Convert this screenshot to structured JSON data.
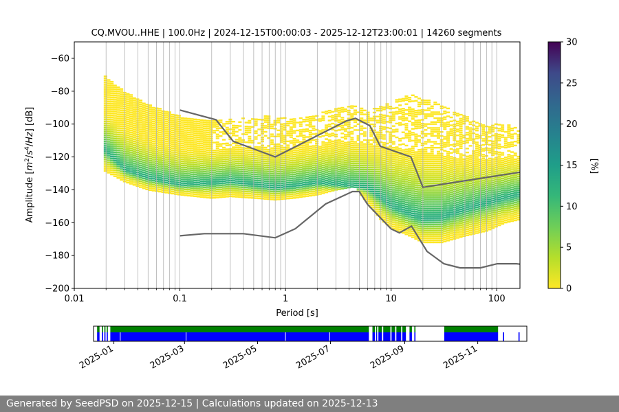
{
  "chart_data": [
    {
      "type": "heatmap",
      "title": "CQ.MVOU..HHE | 100.0Hz | 2024-12-15T00:00:03 - 2025-12-12T23:00:01 | 14260 segments",
      "xlabel": "Period [s]",
      "ylabel_parts": [
        "Amplitude [",
        "m",
        "2",
        "/",
        "s",
        "4",
        "/",
        "Hz",
        "] [dB]"
      ],
      "x_scale": "log",
      "xlim": [
        0.01,
        166
      ],
      "ylim": [
        -200,
        -50
      ],
      "x_ticks": [
        0.01,
        0.1,
        1,
        10,
        100
      ],
      "x_tick_labels": [
        "0.01",
        "0.1",
        "1",
        "10",
        "100"
      ],
      "y_ticks": [
        -200,
        -180,
        -160,
        -140,
        -120,
        -100,
        -80,
        -60
      ],
      "y_tick_labels": [
        "−200",
        "−180",
        "−160",
        "−140",
        "−120",
        "−100",
        "−80",
        "−60"
      ],
      "grid": "x-only",
      "colormap": "viridis_r",
      "colorbar": {
        "label": "[%]",
        "range": [
          0,
          30
        ],
        "ticks": [
          0,
          5,
          10,
          15,
          20,
          25,
          30
        ],
        "tick_labels": [
          "0",
          "5",
          "10",
          "15",
          "20",
          "25",
          "30"
        ]
      },
      "psd_envelope": {
        "periods": [
          0.019,
          0.03,
          0.05,
          0.1,
          0.2,
          0.3,
          0.5,
          0.8,
          1.2,
          2,
          3,
          4.5,
          6,
          8,
          10,
          15,
          20,
          30,
          50,
          80,
          120,
          166
        ],
        "upper": [
          -70,
          -80,
          -88,
          -95,
          -98,
          -97,
          -95,
          -95,
          -96,
          -94,
          -90,
          -88,
          -92,
          -88,
          -85,
          -82,
          -84,
          -88,
          -95,
          -100,
          -100,
          -102
        ],
        "mode": [
          -115,
          -128,
          -133,
          -137,
          -136,
          -135,
          -137,
          -139,
          -138,
          -136,
          -137,
          -138,
          -139,
          -145,
          -150,
          -155,
          -158,
          -157,
          -152,
          -148,
          -145,
          -143
        ],
        "lower": [
          -128,
          -135,
          -140,
          -143,
          -145,
          -144,
          -145,
          -146,
          -145,
          -143,
          -140,
          -138,
          -148,
          -158,
          -163,
          -168,
          -172,
          -172,
          -168,
          -165,
          -160,
          -158
        ],
        "outlier_min_period": 0.2
      },
      "nhnm": {
        "name": "NHNM",
        "x": [
          0.1,
          0.22,
          0.32,
          0.8,
          3.8,
          4.6,
          6.3,
          7.9,
          15.4,
          20,
          354.8
        ],
        "y": [
          -91.5,
          -97.4,
          -110.5,
          -120,
          -98,
          -96.5,
          -101,
          -113.5,
          -120,
          -138.5,
          -126
        ]
      },
      "nlnm": {
        "name": "NLNM",
        "x": [
          0.1,
          0.17,
          0.4,
          0.8,
          1.24,
          2.4,
          4.3,
          5,
          6,
          10,
          12,
          15.6,
          21.9,
          31.6,
          45,
          70,
          101,
          154,
          328
        ],
        "y": [
          -168,
          -166.7,
          -166.7,
          -169.2,
          -163.7,
          -148.6,
          -141.1,
          -141.1,
          -149,
          -163.8,
          -166.2,
          -162.1,
          -177.5,
          -185,
          -187.5,
          -187.5,
          -185,
          -185,
          -187.5
        ]
      }
    },
    {
      "type": "timeline",
      "xlim": [
        "2024-12-15",
        "2025-12-12"
      ],
      "x_ticks": [
        "2025-01-01",
        "2025-03-01",
        "2025-05-01",
        "2025-07-01",
        "2025-09-01",
        "2025-11-01"
      ],
      "x_tick_labels": [
        "2025-01",
        "2025-03",
        "2025-05",
        "2025-07",
        "2025-09",
        "2025-11"
      ],
      "colors": {
        "green": "#008000",
        "blue": "#0000ff"
      },
      "green_intervals": [
        [
          "2024-12-18",
          "2024-12-20"
        ],
        [
          "2024-12-22",
          "2024-12-23"
        ],
        [
          "2024-12-24",
          "2024-12-25"
        ],
        [
          "2024-12-26",
          "2024-12-27"
        ],
        [
          "2024-12-29",
          "2025-08-02"
        ],
        [
          "2025-08-05",
          "2025-08-07"
        ],
        [
          "2025-08-08",
          "2025-08-09"
        ],
        [
          "2025-08-10",
          "2025-08-13"
        ],
        [
          "2025-08-14",
          "2025-08-20"
        ],
        [
          "2025-08-21",
          "2025-08-24"
        ],
        [
          "2025-08-25",
          "2025-08-29"
        ],
        [
          "2025-08-30",
          "2025-09-02"
        ],
        [
          "2025-09-05",
          "2025-09-07"
        ],
        [
          "2025-09-09",
          "2025-09-10"
        ],
        [
          "2025-10-04",
          "2025-11-18"
        ]
      ],
      "blue_intervals": [
        [
          "2024-12-18",
          "2024-12-20"
        ],
        [
          "2024-12-22",
          "2024-12-23"
        ],
        [
          "2024-12-24",
          "2024-12-25"
        ],
        [
          "2024-12-26",
          "2024-12-27"
        ],
        [
          "2024-12-29",
          "2025-08-02"
        ],
        [
          "2025-08-05",
          "2025-08-07"
        ],
        [
          "2025-08-08",
          "2025-08-09"
        ],
        [
          "2025-08-10",
          "2025-08-13"
        ],
        [
          "2025-08-14",
          "2025-08-20"
        ],
        [
          "2025-08-21",
          "2025-08-24"
        ],
        [
          "2025-08-25",
          "2025-08-29"
        ],
        [
          "2025-08-30",
          "2025-09-02"
        ],
        [
          "2025-09-05",
          "2025-09-07"
        ],
        [
          "2025-09-09",
          "2025-09-10"
        ],
        [
          "2025-10-04",
          "2025-11-18"
        ],
        [
          "2025-11-22",
          "2025-11-23"
        ],
        [
          "2025-12-05",
          "2025-12-06"
        ]
      ],
      "blue_gaps": [
        "2025-01-06",
        "2025-03-02",
        "2025-05-24",
        "2025-06-30"
      ]
    }
  ],
  "footer": {
    "text": "Generated by SeedPSD on 2025-12-15 | Calculations updated on 2025-12-13"
  }
}
